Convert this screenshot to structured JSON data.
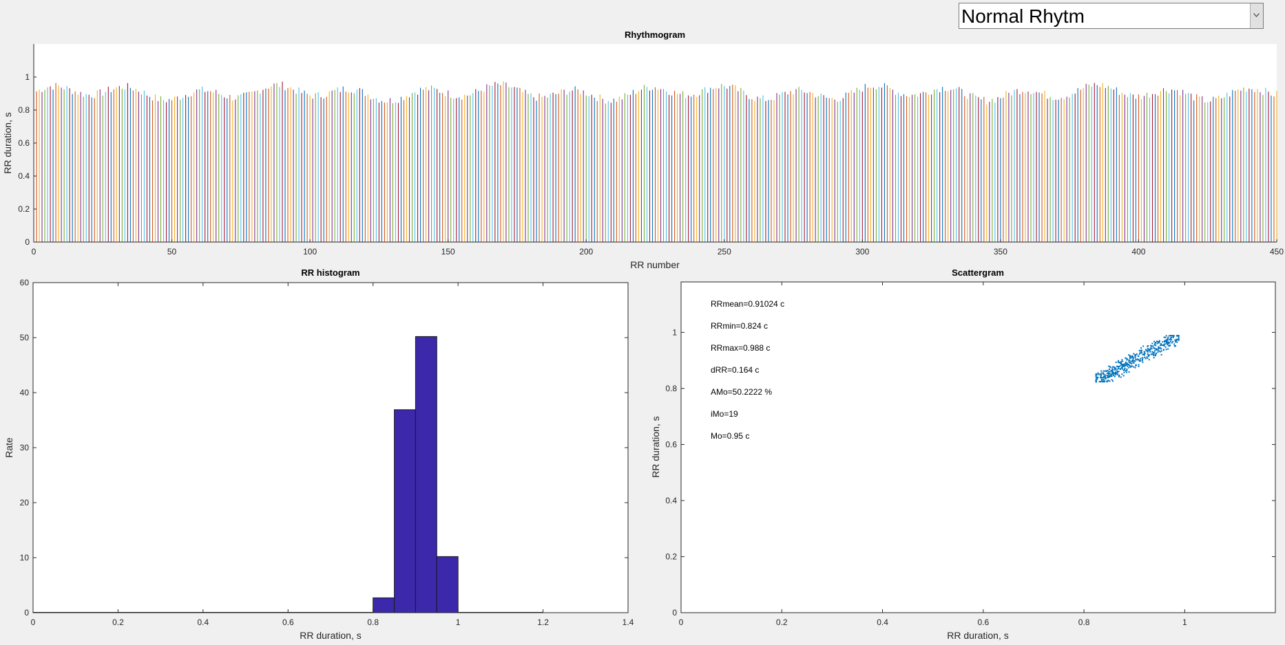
{
  "dropdown": {
    "selected": "Normal Rhytm",
    "icon": "chevron-down-icon"
  },
  "charts": {
    "rhythmogram": {
      "title": "Rhythmogram",
      "xlabel": "RR number",
      "ylabel": "RR duration, s",
      "xlim": [
        0,
        450
      ],
      "ylim": [
        0,
        1.2
      ],
      "xticks": [
        0,
        50,
        100,
        150,
        200,
        250,
        300,
        350,
        400,
        450
      ],
      "yticks": [
        0,
        0.2,
        0.4,
        0.6,
        0.8,
        1
      ],
      "colors": [
        "#0072bd",
        "#d95319",
        "#edb120",
        "#7e2f8e",
        "#77ac30",
        "#4dbeee",
        "#a2142f"
      ]
    },
    "histogram": {
      "title": "RR histogram",
      "xlabel": "RR duration, s",
      "ylabel": "Rate",
      "xlim": [
        0,
        1.4
      ],
      "ylim": [
        0,
        60
      ],
      "xticks": [
        0,
        0.2,
        0.4,
        0.6,
        0.8,
        1,
        1.2,
        1.4
      ],
      "yticks": [
        0,
        10,
        20,
        30,
        40,
        50,
        60
      ],
      "bar_color": "#3c28aa"
    },
    "scattergram": {
      "title": "Scattergram",
      "xlabel": "RR duration, s",
      "ylabel": "RR duration, s",
      "xlim": [
        0,
        1.18
      ],
      "ylim": [
        0,
        1.18
      ],
      "xticks": [
        0,
        0.2,
        0.4,
        0.6,
        0.8,
        1
      ],
      "yticks": [
        0,
        0.2,
        0.4,
        0.6,
        0.8,
        1
      ],
      "point_color": "#0072bd",
      "stats": [
        "RRmean=0.91024 c",
        "RRmin=0.824 c",
        "RRmax=0.988 c",
        "dRR=0.164 c",
        "AMo=50.2222 %",
        "iMo=19",
        "Mo=0.95 c"
      ]
    }
  },
  "chart_data": [
    {
      "type": "bar",
      "title": "Rhythmogram",
      "xlabel": "RR number",
      "ylabel": "RR duration, s",
      "xlim": [
        0,
        450
      ],
      "ylim": [
        0,
        1.2
      ],
      "grid": false,
      "x": [
        1,
        450
      ],
      "note_values_range": [
        0.824,
        0.988
      ]
    },
    {
      "type": "bar",
      "title": "RR histogram",
      "xlabel": "RR duration, s",
      "ylabel": "Rate",
      "xlim": [
        0,
        1.4
      ],
      "ylim": [
        0,
        60
      ],
      "grid": false,
      "bins": [
        {
          "from": 0.0,
          "to": 0.8,
          "value": 0
        },
        {
          "from": 0.8,
          "to": 0.85,
          "value": 2.7
        },
        {
          "from": 0.85,
          "to": 0.9,
          "value": 36.9
        },
        {
          "from": 0.9,
          "to": 0.95,
          "value": 50.2
        },
        {
          "from": 0.95,
          "to": 1.0,
          "value": 10.2
        },
        {
          "from": 1.0,
          "to": 1.2,
          "value": 0
        }
      ]
    },
    {
      "type": "scatter",
      "title": "Scattergram",
      "xlabel": "RR duration, s",
      "ylabel": "RR duration, s",
      "xlim": [
        0,
        1.18
      ],
      "ylim": [
        0,
        1.18
      ],
      "grid": false,
      "x_range": [
        0.824,
        0.988
      ],
      "y_range": [
        0.824,
        0.988
      ]
    }
  ]
}
